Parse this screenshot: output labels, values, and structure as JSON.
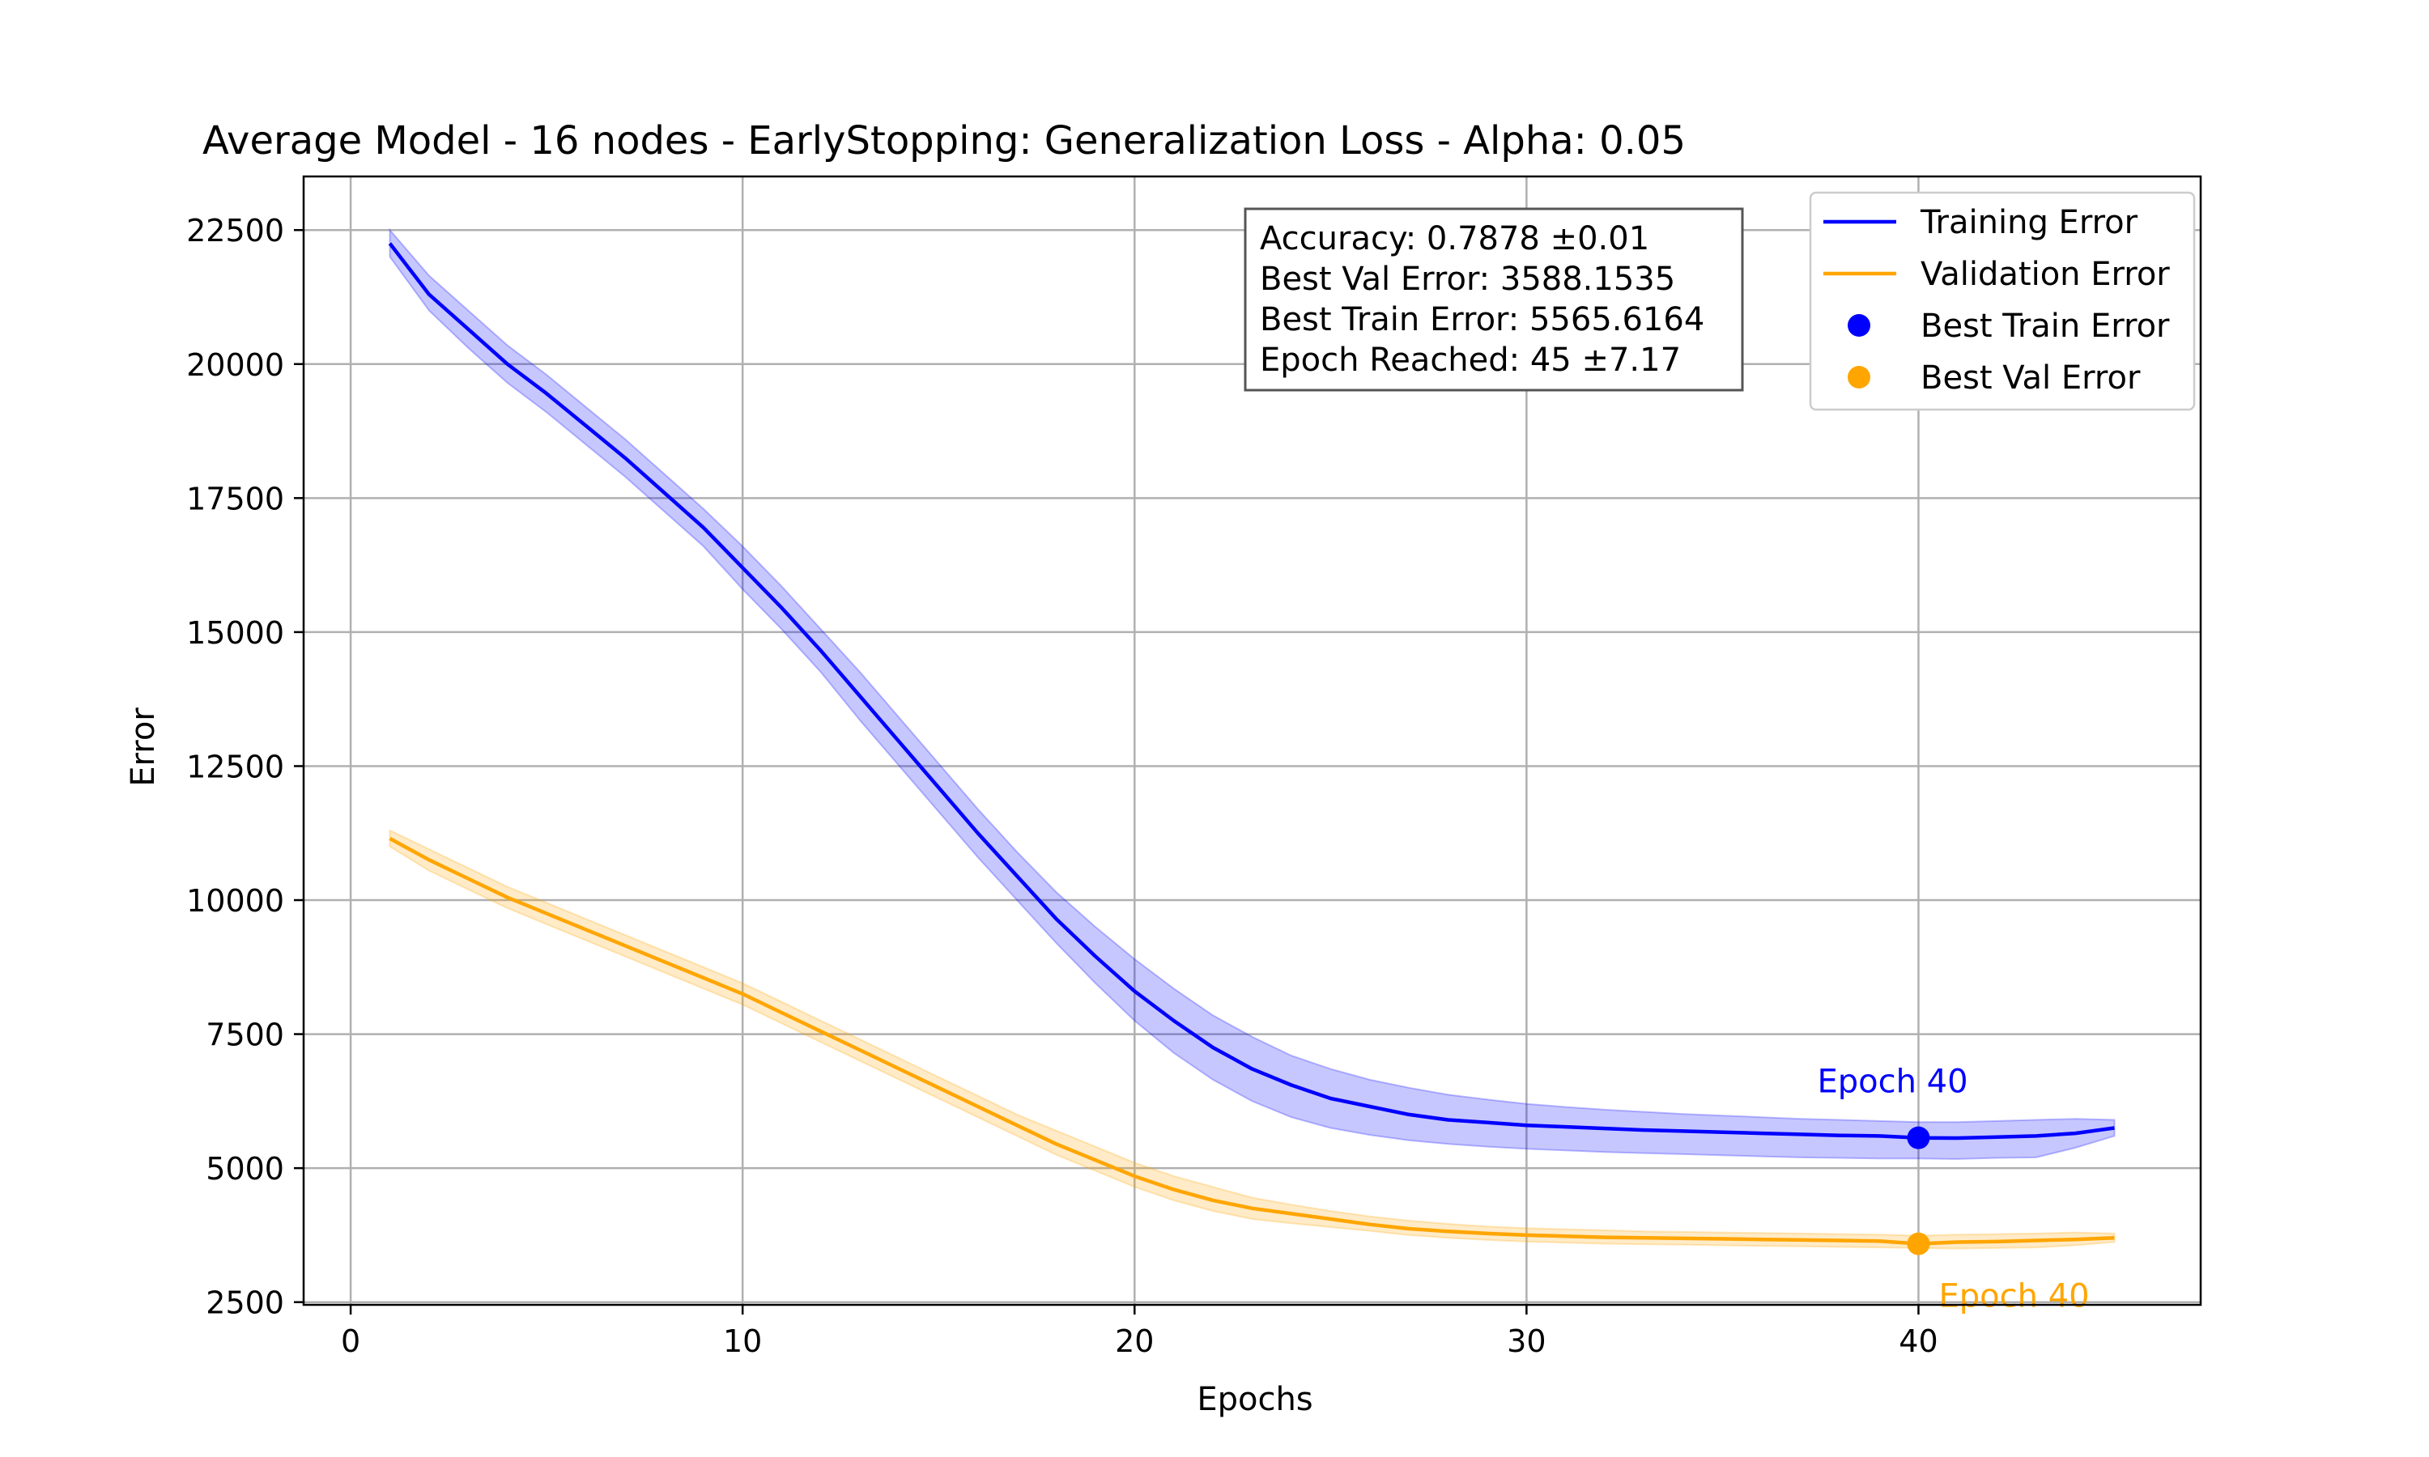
{
  "chart_data": {
    "type": "line",
    "title": "Average Model - 16 nodes - EarlyStopping: Generalization Loss - Alpha: 0.05",
    "xlabel": "Epochs",
    "ylabel": "Error",
    "xlim": [
      -1.2,
      47.2
    ],
    "ylim": [
      2450,
      23500
    ],
    "xticks": [
      0,
      10,
      20,
      30,
      40
    ],
    "yticks": [
      2500,
      5000,
      7500,
      10000,
      12500,
      15000,
      17500,
      20000,
      22500
    ],
    "grid": true,
    "legend_position": "top-right",
    "x": [
      1,
      2,
      3,
      4,
      5,
      6,
      7,
      8,
      9,
      10,
      11,
      12,
      13,
      14,
      15,
      16,
      17,
      18,
      19,
      20,
      21,
      22,
      23,
      24,
      25,
      26,
      27,
      28,
      29,
      30,
      31,
      32,
      33,
      34,
      35,
      36,
      37,
      38,
      39,
      40,
      41,
      42,
      43,
      44,
      45
    ],
    "series": [
      {
        "name": "Training Error",
        "color": "#0000ff",
        "values": [
          22250,
          21300,
          20650,
          20000,
          19450,
          18850,
          18250,
          17600,
          16950,
          16200,
          15450,
          14650,
          13800,
          12950,
          12100,
          11250,
          10450,
          9650,
          8950,
          8300,
          7750,
          7250,
          6850,
          6550,
          6300,
          6150,
          6000,
          5900,
          5850,
          5800,
          5770,
          5740,
          5710,
          5690,
          5670,
          5650,
          5630,
          5610,
          5600,
          5565,
          5560,
          5580,
          5600,
          5650,
          5750
        ],
        "band_upper": [
          22500,
          21650,
          21000,
          20350,
          19800,
          19200,
          18600,
          17950,
          17300,
          16600,
          15850,
          15050,
          14250,
          13400,
          12550,
          11700,
          10900,
          10150,
          9500,
          8900,
          8350,
          7850,
          7450,
          7100,
          6850,
          6650,
          6500,
          6370,
          6280,
          6200,
          6140,
          6090,
          6050,
          6010,
          5980,
          5950,
          5920,
          5900,
          5880,
          5860,
          5860,
          5880,
          5900,
          5920,
          5900
        ],
        "band_lower": [
          22000,
          21000,
          20300,
          19650,
          19100,
          18500,
          17900,
          17250,
          16600,
          15800,
          15050,
          14250,
          13350,
          12500,
          11650,
          10800,
          10000,
          9200,
          8450,
          7750,
          7150,
          6650,
          6250,
          5950,
          5750,
          5620,
          5520,
          5450,
          5400,
          5360,
          5330,
          5300,
          5280,
          5260,
          5240,
          5220,
          5200,
          5190,
          5180,
          5180,
          5170,
          5190,
          5200,
          5380,
          5600
        ]
      },
      {
        "name": "Validation Error",
        "color": "#ffa500",
        "values": [
          11150,
          10750,
          10400,
          10050,
          9750,
          9450,
          9150,
          8850,
          8550,
          8250,
          7900,
          7550,
          7200,
          6850,
          6500,
          6150,
          5800,
          5450,
          5150,
          4850,
          4600,
          4400,
          4250,
          4150,
          4050,
          3950,
          3870,
          3820,
          3780,
          3750,
          3730,
          3710,
          3700,
          3690,
          3680,
          3670,
          3660,
          3650,
          3640,
          3588,
          3620,
          3630,
          3650,
          3670,
          3700
        ],
        "band_upper": [
          11300,
          10950,
          10600,
          10250,
          9950,
          9650,
          9350,
          9050,
          8750,
          8450,
          8100,
          7750,
          7400,
          7050,
          6700,
          6350,
          6000,
          5700,
          5400,
          5100,
          4850,
          4650,
          4450,
          4320,
          4200,
          4100,
          4020,
          3960,
          3910,
          3880,
          3860,
          3840,
          3820,
          3810,
          3800,
          3790,
          3780,
          3770,
          3760,
          3740,
          3760,
          3770,
          3780,
          3800,
          3780
        ],
        "band_lower": [
          11000,
          10550,
          10200,
          9850,
          9550,
          9250,
          8950,
          8650,
          8350,
          8050,
          7700,
          7350,
          7000,
          6650,
          6300,
          5950,
          5600,
          5250,
          4950,
          4650,
          4400,
          4200,
          4050,
          3970,
          3900,
          3830,
          3750,
          3700,
          3660,
          3630,
          3610,
          3590,
          3580,
          3570,
          3560,
          3550,
          3540,
          3530,
          3520,
          3510,
          3500,
          3510,
          3520,
          3560,
          3620
        ]
      }
    ],
    "best_points": [
      {
        "name": "Best Train Error",
        "x": 40,
        "y": 5565.6164,
        "color": "#0000ff",
        "annotation": "Epoch 40"
      },
      {
        "name": "Best Val Error",
        "x": 40,
        "y": 3588.1535,
        "color": "#ffa500",
        "annotation": "Epoch 40"
      }
    ],
    "info_box": [
      "Accuracy: 0.7878 ±0.01",
      "Best Val Error: 3588.1535",
      "Best Train Error: 5565.6164",
      "Epoch Reached: 45 ±7.17"
    ],
    "legend": [
      {
        "label": "Training Error",
        "kind": "line",
        "color": "#0000ff"
      },
      {
        "label": "Validation Error",
        "kind": "line",
        "color": "#ffa500"
      },
      {
        "label": "Best Train Error",
        "kind": "dot",
        "color": "#0000ff"
      },
      {
        "label": "Best Val Error",
        "kind": "dot",
        "color": "#ffa500"
      }
    ]
  }
}
